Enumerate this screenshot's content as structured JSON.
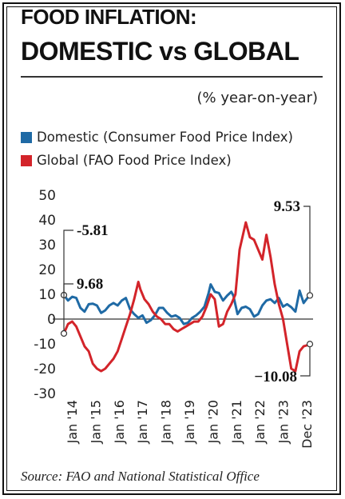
{
  "header": {
    "title_line1": "FOOD INFLATION:",
    "title_line2": "DOMESTIC vs GLOBAL"
  },
  "unit_label": "(% year-on-year)",
  "legend": [
    {
      "label": "Domestic (Consumer Food Price Index)",
      "color": "#1f6aa5"
    },
    {
      "label": "Global (FAO Food Price Index)",
      "color": "#d3242a"
    }
  ],
  "source": "Source: FAO and National Statistical Office",
  "chart_data": {
    "type": "line",
    "ylim": [
      -30,
      50
    ],
    "yticks": [
      "50",
      "40",
      "30",
      "20",
      "10",
      "0",
      "-10",
      "-20",
      "-30"
    ],
    "xticks": [
      "Jan '14",
      "Jan '15",
      "Jan '16",
      "Jan '17",
      "Jan '18",
      "Jan '19",
      "Jan '20",
      "Jan '21",
      "Jan '22",
      "Jan '23",
      "Dec '23"
    ],
    "series": [
      {
        "name": "Domestic (Consumer Food Price Index)",
        "color": "#1f6aa5",
        "points": [
          [
            "2014-01",
            9.68
          ],
          [
            "2014-03",
            7.5
          ],
          [
            "2014-05",
            9
          ],
          [
            "2014-07",
            8.5
          ],
          [
            "2014-09",
            4.5
          ],
          [
            "2014-11",
            3
          ],
          [
            "2015-01",
            6
          ],
          [
            "2015-03",
            6.2
          ],
          [
            "2015-05",
            5.5
          ],
          [
            "2015-07",
            2.5
          ],
          [
            "2015-09",
            3.5
          ],
          [
            "2015-11",
            5.5
          ],
          [
            "2016-01",
            6.5
          ],
          [
            "2016-03",
            5.5
          ],
          [
            "2016-05",
            7.5
          ],
          [
            "2016-07",
            8.5
          ],
          [
            "2016-09",
            4
          ],
          [
            "2016-11",
            2
          ],
          [
            "2017-01",
            0.5
          ],
          [
            "2017-03",
            1.5
          ],
          [
            "2017-05",
            -1.5
          ],
          [
            "2017-07",
            -0.5
          ],
          [
            "2017-09",
            1.5
          ],
          [
            "2017-11",
            4.5
          ],
          [
            "2018-01",
            4.5
          ],
          [
            "2018-03",
            2.5
          ],
          [
            "2018-05",
            1
          ],
          [
            "2018-07",
            1.5
          ],
          [
            "2018-09",
            0.5
          ],
          [
            "2018-11",
            -2
          ],
          [
            "2019-01",
            -1.5
          ],
          [
            "2019-03",
            0.5
          ],
          [
            "2019-05",
            1.5
          ],
          [
            "2019-07",
            3
          ],
          [
            "2019-09",
            5
          ],
          [
            "2019-11",
            10.5
          ],
          [
            "2019-12",
            14
          ],
          [
            "2020-02",
            11
          ],
          [
            "2020-04",
            10.5
          ],
          [
            "2020-06",
            7.5
          ],
          [
            "2020-08",
            9.5
          ],
          [
            "2020-10",
            11
          ],
          [
            "2020-11",
            9.5
          ],
          [
            "2021-01",
            2
          ],
          [
            "2021-03",
            4.5
          ],
          [
            "2021-05",
            5
          ],
          [
            "2021-07",
            4
          ],
          [
            "2021-09",
            1
          ],
          [
            "2021-11",
            2
          ],
          [
            "2022-01",
            5.5
          ],
          [
            "2022-03",
            7.5
          ],
          [
            "2022-05",
            8
          ],
          [
            "2022-07",
            6.5
          ],
          [
            "2022-09",
            8.5
          ],
          [
            "2022-11",
            5
          ],
          [
            "2023-01",
            6
          ],
          [
            "2023-03",
            4.8
          ],
          [
            "2023-05",
            3
          ],
          [
            "2023-07",
            11.5
          ],
          [
            "2023-09",
            6.5
          ],
          [
            "2023-11",
            8.7
          ],
          [
            "2023-12",
            9.53
          ]
        ]
      },
      {
        "name": "Global (FAO Food Price Index)",
        "color": "#d3242a",
        "points": [
          [
            "2014-01",
            -5.81
          ],
          [
            "2014-03",
            -2
          ],
          [
            "2014-05",
            -1
          ],
          [
            "2014-07",
            -3
          ],
          [
            "2014-09",
            -7
          ],
          [
            "2014-11",
            -11
          ],
          [
            "2015-01",
            -13
          ],
          [
            "2015-03",
            -18
          ],
          [
            "2015-05",
            -20
          ],
          [
            "2015-07",
            -21
          ],
          [
            "2015-09",
            -20
          ],
          [
            "2015-11",
            -18
          ],
          [
            "2016-01",
            -16
          ],
          [
            "2016-03",
            -13
          ],
          [
            "2016-05",
            -8
          ],
          [
            "2016-07",
            -3
          ],
          [
            "2016-09",
            2
          ],
          [
            "2016-11",
            8
          ],
          [
            "2017-01",
            15
          ],
          [
            "2017-02",
            12
          ],
          [
            "2017-04",
            8
          ],
          [
            "2017-06",
            6
          ],
          [
            "2017-08",
            3
          ],
          [
            "2017-10",
            1
          ],
          [
            "2017-12",
            0
          ],
          [
            "2018-02",
            -2
          ],
          [
            "2018-04",
            -2
          ],
          [
            "2018-06",
            -4
          ],
          [
            "2018-08",
            -5
          ],
          [
            "2018-10",
            -4
          ],
          [
            "2018-12",
            -3
          ],
          [
            "2019-02",
            -2
          ],
          [
            "2019-04",
            -1
          ],
          [
            "2019-06",
            -1
          ],
          [
            "2019-08",
            1
          ],
          [
            "2019-10",
            5
          ],
          [
            "2019-12",
            10
          ],
          [
            "2020-02",
            8
          ],
          [
            "2020-04",
            -3
          ],
          [
            "2020-06",
            -2
          ],
          [
            "2020-08",
            3
          ],
          [
            "2020-10",
            6
          ],
          [
            "2020-12",
            10
          ],
          [
            "2021-02",
            28
          ],
          [
            "2021-05",
            39
          ],
          [
            "2021-07",
            33
          ],
          [
            "2021-09",
            32
          ],
          [
            "2021-11",
            28
          ],
          [
            "2022-01",
            24
          ],
          [
            "2022-03",
            34
          ],
          [
            "2022-05",
            25
          ],
          [
            "2022-07",
            14
          ],
          [
            "2022-09",
            6
          ],
          [
            "2022-11",
            0
          ],
          [
            "2023-01",
            -10
          ],
          [
            "2023-03",
            -20
          ],
          [
            "2023-05",
            -21
          ],
          [
            "2023-07",
            -13
          ],
          [
            "2023-09",
            -11
          ],
          [
            "2023-11",
            -10.5
          ],
          [
            "2023-12",
            -10.08
          ]
        ]
      }
    ],
    "annotations": [
      {
        "text": "-5.81",
        "series": "Global (FAO Food Price Index)",
        "at": "2014-01"
      },
      {
        "text": "9.68",
        "series": "Domestic (Consumer Food Price Index)",
        "at": "2014-01"
      },
      {
        "text": "9.53",
        "series": "Domestic (Consumer Food Price Index)",
        "at": "2023-12"
      },
      {
        "text": "−10.08",
        "series": "Global (FAO Food Price Index)",
        "at": "2023-12"
      }
    ]
  }
}
